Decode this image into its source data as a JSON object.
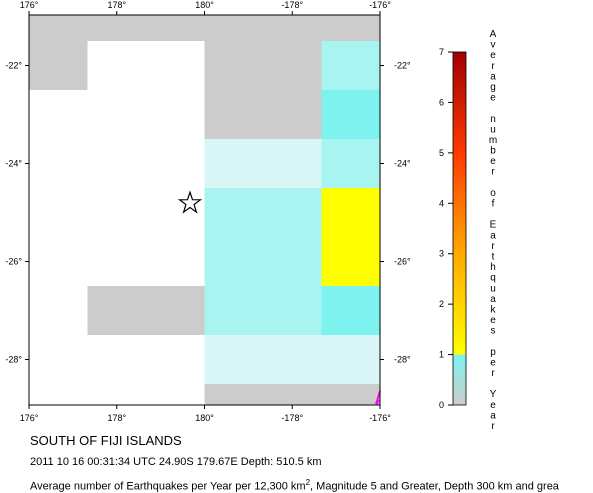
{
  "map": {
    "x_ticks": [
      "176°",
      "178°",
      "180°",
      "-178°",
      "-176°"
    ],
    "y_ticks": [
      "-22°",
      "-24°",
      "-26°",
      "-28°"
    ],
    "epicenter_marker": "star-icon",
    "cell_colors": {
      "nodata": "#ffffff",
      "zero": "#cccccc",
      "light": "#d8f6f6",
      "mid": "#a8f4f0",
      "strong": "#7ef2ee",
      "yellow": "#ffff00"
    },
    "cells": [
      [
        "zero",
        "zero",
        "zero",
        "zero",
        "zero",
        "zero"
      ],
      [
        "zero",
        "nodata",
        "nodata",
        "zero",
        "zero",
        "mid"
      ],
      [
        "nodata",
        "nodata",
        "nodata",
        "zero",
        "zero",
        "strong"
      ],
      [
        "nodata",
        "nodata",
        "nodata",
        "light",
        "light",
        "mid"
      ],
      [
        "nodata",
        "nodata",
        "nodata",
        "mid",
        "mid",
        "yellow"
      ],
      [
        "nodata",
        "nodata",
        "nodata",
        "mid",
        "mid",
        "yellow"
      ],
      [
        "nodata",
        "zero",
        "zero",
        "mid",
        "mid",
        "strong"
      ],
      [
        "nodata",
        "nodata",
        "nodata",
        "light",
        "light",
        "light"
      ],
      [
        "nodata",
        "nodata",
        "nodata",
        "zero",
        "zero",
        "zero"
      ],
      [
        "nodata",
        "nodata",
        "nodata",
        "zero",
        "zero",
        "zero"
      ]
    ]
  },
  "colorbar": {
    "label": "Average number of Earthquakes per Year",
    "ticks": [
      "0",
      "1",
      "2",
      "3",
      "4",
      "5",
      "6",
      "7"
    ],
    "stops": [
      {
        "value": 0,
        "color": "#cccccc"
      },
      {
        "value": 1,
        "color": "#7ef2ee"
      },
      {
        "value": 1,
        "color": "#ffff00"
      },
      {
        "value": 3,
        "color": "#ffaa00"
      },
      {
        "value": 5,
        "color": "#ff3a00"
      },
      {
        "value": 7,
        "color": "#a00000"
      }
    ]
  },
  "caption": {
    "title": "SOUTH OF FIJI ISLANDS",
    "event": "2011 10 16 00:31:34 UTC 24.90S 179.67E Depth: 510.5 km",
    "footnote_prefix": "Average number of Earthquakes per Year per 12,300 km",
    "footnote_sup": "2",
    "footnote_suffix": ", Magnitude 5 and Greater, Depth 300 km and grea"
  }
}
